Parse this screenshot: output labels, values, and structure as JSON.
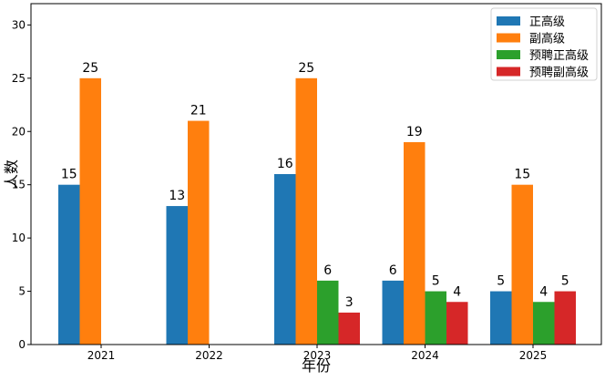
{
  "chart_data": {
    "type": "bar",
    "categories": [
      "2021",
      "2022",
      "2023",
      "2024",
      "2025"
    ],
    "series": [
      {
        "name": "正高级",
        "color": "#1f77b4",
        "values": [
          15,
          13,
          16,
          6,
          5
        ]
      },
      {
        "name": "副高级",
        "color": "#ff7f0e",
        "values": [
          25,
          21,
          25,
          19,
          15
        ]
      },
      {
        "name": "预聘正高级",
        "color": "#2ca02c",
        "values": [
          null,
          null,
          6,
          5,
          4
        ]
      },
      {
        "name": "预聘副高级",
        "color": "#d62728",
        "values": [
          null,
          null,
          3,
          4,
          5
        ]
      }
    ],
    "xlabel": "年份",
    "ylabel": "人数",
    "ylim": [
      0,
      32
    ],
    "yticks": [
      "0",
      "5",
      "10",
      "15",
      "20",
      "25",
      "30"
    ],
    "grid": false,
    "legend": "top-right"
  }
}
